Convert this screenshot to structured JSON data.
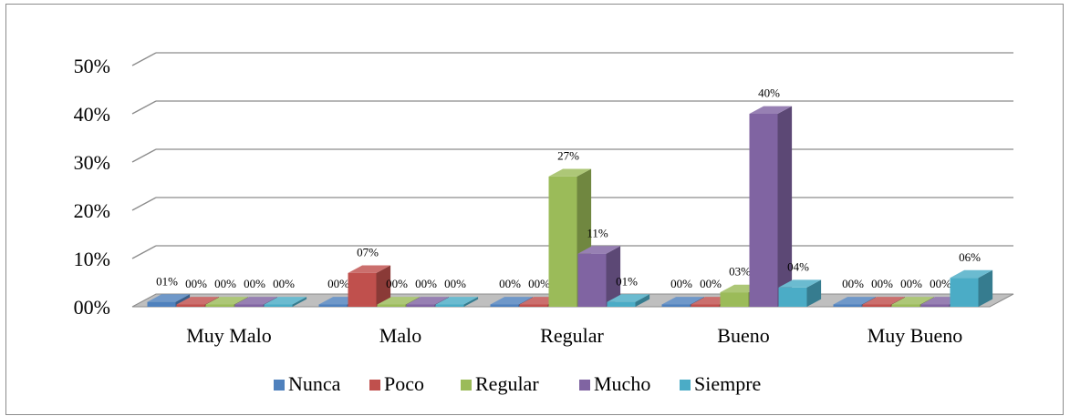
{
  "chart_data": {
    "type": "bar",
    "title": "",
    "xlabel": "",
    "ylabel": "",
    "ylim": [
      0,
      50
    ],
    "yticks": [
      "00%",
      "10%",
      "20%",
      "30%",
      "40%",
      "50%"
    ],
    "categories": [
      "Muy Malo",
      "Malo",
      "Regular",
      "Bueno",
      "Muy Bueno"
    ],
    "series": [
      {
        "name": "Nunca",
        "color": "#4f81bd",
        "values": [
          1,
          0,
          0,
          0,
          0
        ],
        "labels": [
          "01%",
          "00%",
          "00%",
          "00%",
          "00%"
        ]
      },
      {
        "name": "Poco",
        "color": "#c0504d",
        "values": [
          0,
          7,
          0,
          0,
          0
        ],
        "labels": [
          "00%",
          "07%",
          "00%",
          "00%",
          "00%"
        ]
      },
      {
        "name": "Regular",
        "color": "#9bbb59",
        "values": [
          0,
          0,
          27,
          3,
          0
        ],
        "labels": [
          "00%",
          "00%",
          "27%",
          "03%",
          "00%"
        ]
      },
      {
        "name": "Mucho",
        "color": "#8064a2",
        "values": [
          0,
          0,
          11,
          40,
          0
        ],
        "labels": [
          "00%",
          "00%",
          "11%",
          "40%",
          "00%"
        ]
      },
      {
        "name": "Siempre",
        "color": "#4bacc6",
        "values": [
          0,
          0,
          1,
          4,
          6
        ],
        "labels": [
          "00%",
          "00%",
          "01%",
          "04%",
          "06%"
        ]
      }
    ],
    "grid": true,
    "legend_position": "bottom",
    "style": "3d-clustered-column"
  }
}
